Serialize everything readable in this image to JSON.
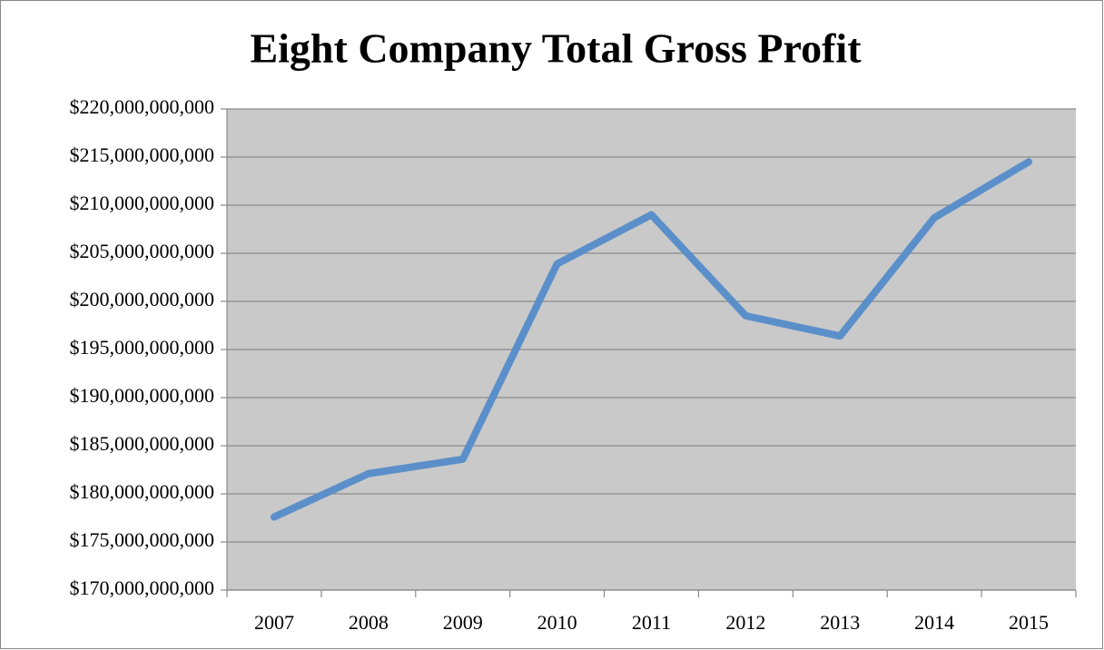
{
  "chart_data": {
    "type": "line",
    "title": "Eight Company Total Gross Profit",
    "categories": [
      "2007",
      "2008",
      "2009",
      "2010",
      "2011",
      "2012",
      "2013",
      "2014",
      "2015"
    ],
    "values": [
      177600000000,
      182100000000,
      183600000000,
      203900000000,
      209000000000,
      198500000000,
      196400000000,
      208700000000,
      214500000000
    ],
    "color": "#5b8fca",
    "ylim": [
      170000000000,
      220000000000
    ],
    "yticks": [
      {
        "value": 170000000000,
        "label": "$170,000,000,000"
      },
      {
        "value": 175000000000,
        "label": "$175,000,000,000"
      },
      {
        "value": 180000000000,
        "label": "$180,000,000,000"
      },
      {
        "value": 185000000000,
        "label": "$185,000,000,000"
      },
      {
        "value": 190000000000,
        "label": "$190,000,000,000"
      },
      {
        "value": 195000000000,
        "label": "$195,000,000,000"
      },
      {
        "value": 200000000000,
        "label": "$200,000,000,000"
      },
      {
        "value": 205000000000,
        "label": "$205,000,000,000"
      },
      {
        "value": 210000000000,
        "label": "$210,000,000,000"
      },
      {
        "value": 215000000000,
        "label": "$215,000,000,000"
      },
      {
        "value": 220000000000,
        "label": "$220,000,000,000"
      }
    ],
    "grid": true
  }
}
